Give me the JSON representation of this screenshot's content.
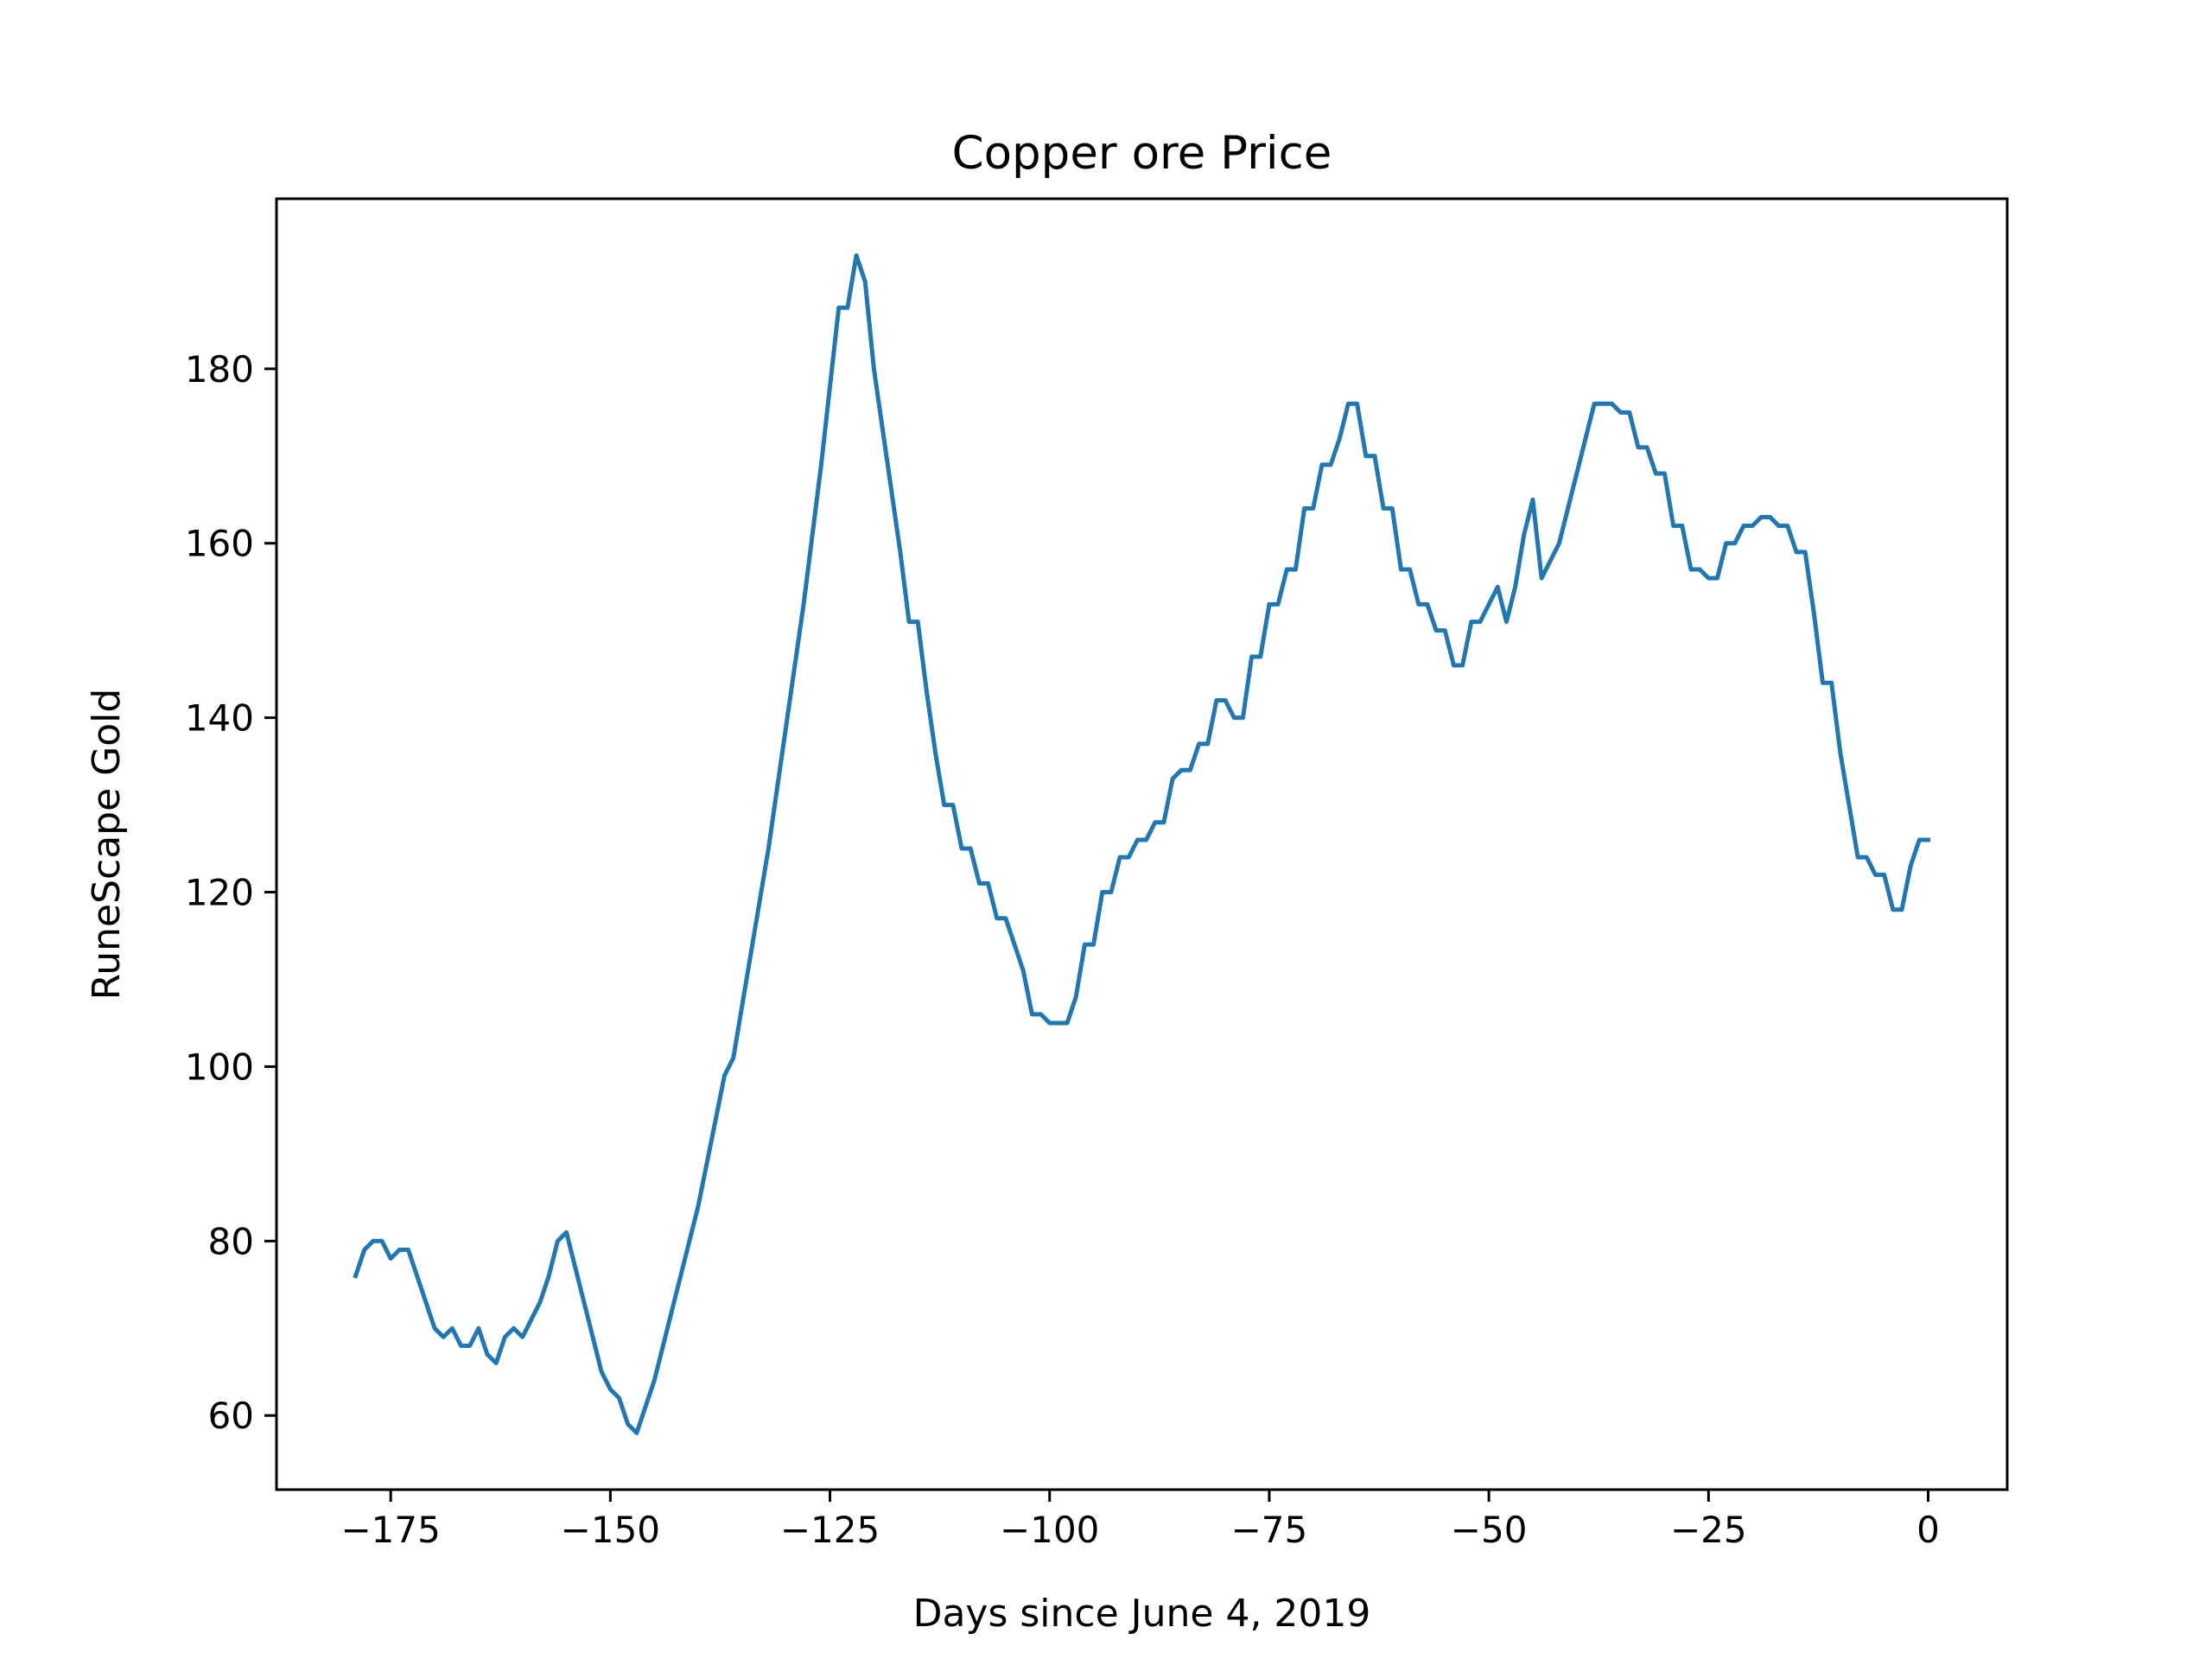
{
  "chart_data": {
    "type": "line",
    "title": "Copper ore Price",
    "xlabel": "Days since June 4, 2019",
    "ylabel": "RuneScape Gold",
    "xlim": [
      -188,
      9
    ],
    "ylim": [
      51.5,
      199.5
    ],
    "xticks": [
      -175,
      -150,
      -125,
      -100,
      -75,
      -50,
      -25,
      0
    ],
    "xtick_labels": [
      "−175",
      "−150",
      "−125",
      "−100",
      "−75",
      "−50",
      "−25",
      "0"
    ],
    "yticks": [
      60,
      80,
      100,
      120,
      140,
      160,
      180
    ],
    "ytick_labels": [
      "60",
      "80",
      "100",
      "120",
      "140",
      "160",
      "180"
    ],
    "grid": false,
    "series": [
      {
        "color": "#1f77b4",
        "x": [
          -179,
          -178,
          -177,
          -176,
          -175,
          -174,
          -173,
          -172,
          -171,
          -170,
          -169,
          -168,
          -167,
          -166,
          -165,
          -164,
          -163,
          -162,
          -161,
          -160,
          -159,
          -158,
          -157,
          -156,
          -155,
          -154,
          -153,
          -152,
          -151,
          -150,
          -149,
          -148,
          -147,
          -146,
          -145,
          -144,
          -143,
          -142,
          -141,
          -140,
          -139,
          -138,
          -137,
          -136,
          -135,
          -134,
          -133,
          -132,
          -131,
          -130,
          -129,
          -128,
          -127,
          -126,
          -125,
          -124,
          -123,
          -122,
          -121,
          -120,
          -119,
          -118,
          -117,
          -116,
          -115,
          -114,
          -113,
          -112,
          -111,
          -110,
          -109,
          -108,
          -107,
          -106,
          -105,
          -104,
          -103,
          -102,
          -101,
          -100,
          -99,
          -98,
          -97,
          -96,
          -95,
          -94,
          -93,
          -92,
          -91,
          -90,
          -89,
          -88,
          -87,
          -86,
          -85,
          -84,
          -83,
          -82,
          -81,
          -80,
          -79,
          -78,
          -77,
          -76,
          -75,
          -74,
          -73,
          -72,
          -71,
          -70,
          -69,
          -68,
          -67,
          -66,
          -65,
          -64,
          -63,
          -62,
          -61,
          -60,
          -59,
          -58,
          -57,
          -56,
          -55,
          -54,
          -53,
          -52,
          -51,
          -50,
          -49,
          -48,
          -47,
          -46,
          -45,
          -44,
          -43,
          -42,
          -41,
          -40,
          -39,
          -38,
          -37,
          -36,
          -35,
          -34,
          -33,
          -32,
          -31,
          -30,
          -29,
          -28,
          -27,
          -26,
          -25,
          -24,
          -23,
          -22,
          -21,
          -20,
          -19,
          -18,
          -17,
          -16,
          -15,
          -14,
          -13,
          -12,
          -11,
          -10,
          -9,
          -8,
          -7,
          -6,
          -5,
          -4,
          -3,
          -2,
          -1,
          0
        ],
        "y": [
          76,
          79,
          80,
          80,
          78,
          79,
          79,
          76,
          73,
          70,
          69,
          70,
          68,
          68,
          70,
          67,
          66,
          69,
          70,
          69,
          71,
          73,
          76,
          80,
          81,
          77,
          73,
          69,
          65,
          63,
          62,
          59,
          58,
          61,
          64,
          68,
          72,
          76,
          80,
          84,
          89,
          94,
          99,
          101,
          107,
          113,
          119,
          125,
          132,
          139,
          146,
          153,
          161,
          169,
          178,
          187,
          187,
          193,
          190,
          180,
          173,
          166,
          159,
          151,
          151,
          143,
          136,
          130,
          130,
          125,
          125,
          121,
          121,
          117,
          117,
          114,
          111,
          106,
          106,
          105,
          105,
          105,
          108,
          114,
          114,
          120,
          120,
          124,
          124,
          126,
          126,
          128,
          128,
          133,
          134,
          134,
          137,
          137,
          142,
          142,
          140,
          140,
          147,
          147,
          153,
          153,
          157,
          157,
          164,
          164,
          169,
          169,
          172,
          176,
          176,
          170,
          170,
          164,
          164,
          157,
          157,
          153,
          153,
          150,
          150,
          146,
          146,
          151,
          151,
          153,
          155,
          151,
          155,
          161,
          165,
          156,
          158,
          160,
          164,
          168,
          172,
          176,
          176,
          176,
          175,
          175,
          171,
          171,
          168,
          168,
          162,
          162,
          157,
          157,
          156,
          156,
          160,
          160,
          162,
          162,
          163,
          163,
          162,
          162,
          159,
          159,
          152,
          144,
          144,
          136,
          130,
          124,
          124,
          122,
          122,
          118,
          118,
          123,
          126,
          126
        ]
      }
    ]
  }
}
